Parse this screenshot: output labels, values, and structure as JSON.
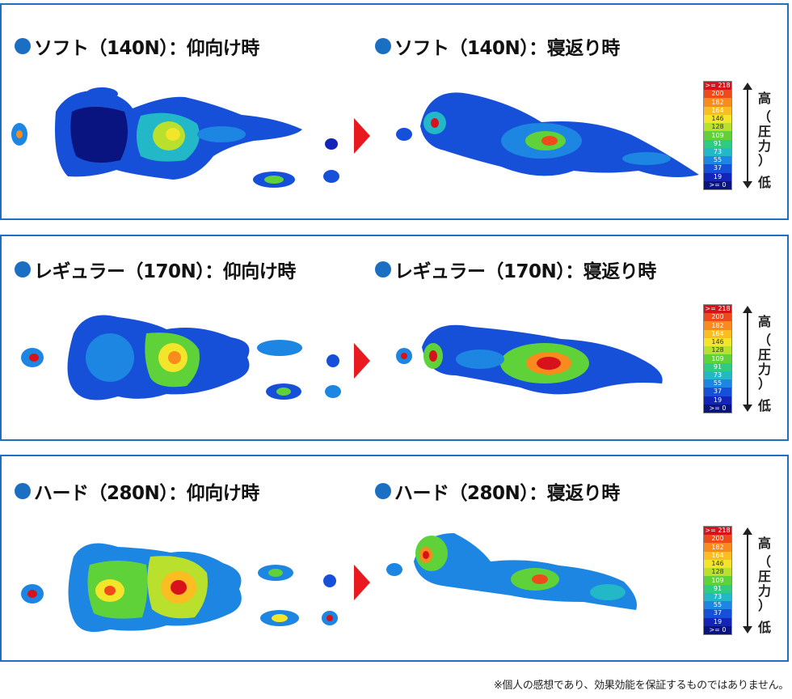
{
  "panels": [
    {
      "left_title": "ソフト（140N）：仰向け時",
      "right_title": "ソフト（140N）：寝返り時",
      "show_scale": true
    },
    {
      "left_title": "レギュラー（170N）：仰向け時",
      "right_title": "レギュラー（170N）：寝返り時",
      "show_scale": true
    },
    {
      "left_title": "ハード（280N）：仰向け時",
      "right_title": "ハード（280N）：寝返り時",
      "show_scale": true
    }
  ],
  "scale": {
    "labels": [
      ">= 218",
      "200",
      "182",
      "164",
      "146",
      "128",
      "109",
      "91",
      "73",
      "55",
      "37",
      "19",
      ">= 0"
    ],
    "colors": [
      "#d8121a",
      "#ef4a1c",
      "#f98a1e",
      "#fbbd22",
      "#f3e52a",
      "#b8e02c",
      "#5fd23a",
      "#2fcb82",
      "#22b8c8",
      "#1c86e2",
      "#1750d8",
      "#1225b8",
      "#0a1480"
    ],
    "high_label": "高",
    "mid_label_chars": [
      "（",
      "圧",
      "力",
      "）"
    ],
    "low_label": "低"
  },
  "colors": {
    "border": "#1e6fc0",
    "bullet": "#1b6fc2",
    "arrow": "#e8191f"
  },
  "footnote": "※個人の感想であり、効果効能を保証するものではありません。"
}
